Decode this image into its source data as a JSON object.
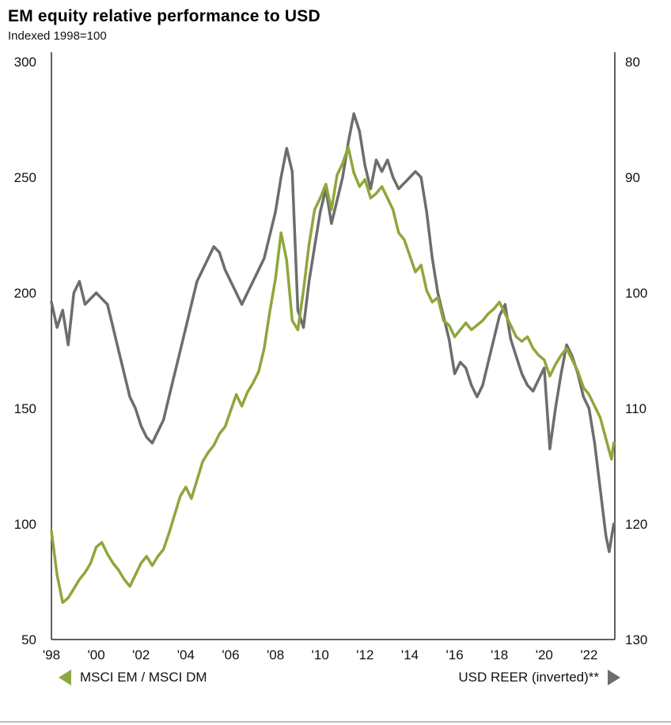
{
  "chart_data": {
    "type": "line",
    "title": "EM equity relative performance to USD",
    "subtitle": "Indexed 1998=100",
    "x_range": [
      1998,
      2023.15
    ],
    "x_ticks": [
      {
        "year": 1998,
        "label": "'98"
      },
      {
        "year": 2000,
        "label": "'00"
      },
      {
        "year": 2002,
        "label": "'02"
      },
      {
        "year": 2004,
        "label": "'04"
      },
      {
        "year": 2006,
        "label": "'06"
      },
      {
        "year": 2008,
        "label": "'08"
      },
      {
        "year": 2010,
        "label": "'10"
      },
      {
        "year": 2012,
        "label": "'12"
      },
      {
        "year": 2014,
        "label": "'14"
      },
      {
        "year": 2016,
        "label": "'16"
      },
      {
        "year": 2018,
        "label": "'18"
      },
      {
        "year": 2020,
        "label": "'20"
      },
      {
        "year": 2022,
        "label": "'22"
      }
    ],
    "left_axis": {
      "ticks": [
        300,
        250,
        200,
        150,
        100,
        50
      ],
      "range": [
        50,
        300
      ]
    },
    "right_axis": {
      "ticks": [
        80,
        90,
        100,
        110,
        120,
        130
      ],
      "range": [
        80,
        130
      ],
      "inverted": true
    },
    "grid": false,
    "legend_position": "bottom",
    "axis_color": "#2b2b2b",
    "series": [
      {
        "name": "MSCI EM / MSCI DM",
        "axis": "left",
        "color": "#8ea73c",
        "z": 2,
        "points": [
          [
            1998,
            97
          ],
          [
            1998.25,
            78
          ],
          [
            1998.5,
            66
          ],
          [
            1998.75,
            68
          ],
          [
            1999,
            72
          ],
          [
            1999.25,
            76
          ],
          [
            1999.5,
            79
          ],
          [
            1999.75,
            83
          ],
          [
            2000,
            90
          ],
          [
            2000.25,
            92
          ],
          [
            2000.5,
            87
          ],
          [
            2000.75,
            83
          ],
          [
            2001,
            80
          ],
          [
            2001.25,
            76
          ],
          [
            2001.5,
            73
          ],
          [
            2001.75,
            78
          ],
          [
            2002,
            83
          ],
          [
            2002.25,
            86
          ],
          [
            2002.5,
            82
          ],
          [
            2002.75,
            86
          ],
          [
            2003,
            89
          ],
          [
            2003.25,
            96
          ],
          [
            2003.5,
            104
          ],
          [
            2003.75,
            112
          ],
          [
            2004,
            116
          ],
          [
            2004.25,
            111
          ],
          [
            2004.5,
            119
          ],
          [
            2004.75,
            127
          ],
          [
            2005,
            131
          ],
          [
            2005.25,
            134
          ],
          [
            2005.5,
            139
          ],
          [
            2005.75,
            142
          ],
          [
            2006,
            149
          ],
          [
            2006.25,
            156
          ],
          [
            2006.5,
            151
          ],
          [
            2006.75,
            157
          ],
          [
            2007,
            161
          ],
          [
            2007.25,
            166
          ],
          [
            2007.5,
            176
          ],
          [
            2007.75,
            192
          ],
          [
            2008,
            206
          ],
          [
            2008.25,
            226
          ],
          [
            2008.5,
            214
          ],
          [
            2008.75,
            188
          ],
          [
            2009,
            184
          ],
          [
            2009.25,
            201
          ],
          [
            2009.5,
            221
          ],
          [
            2009.75,
            236
          ],
          [
            2010,
            241
          ],
          [
            2010.25,
            247
          ],
          [
            2010.5,
            236
          ],
          [
            2010.75,
            251
          ],
          [
            2011,
            256
          ],
          [
            2011.25,
            263
          ],
          [
            2011.5,
            252
          ],
          [
            2011.75,
            246
          ],
          [
            2012,
            249
          ],
          [
            2012.25,
            241
          ],
          [
            2012.5,
            243
          ],
          [
            2012.75,
            246
          ],
          [
            2013,
            241
          ],
          [
            2013.25,
            236
          ],
          [
            2013.5,
            226
          ],
          [
            2013.75,
            223
          ],
          [
            2014,
            216
          ],
          [
            2014.25,
            209
          ],
          [
            2014.5,
            212
          ],
          [
            2014.75,
            201
          ],
          [
            2015,
            196
          ],
          [
            2015.25,
            198
          ],
          [
            2015.5,
            188
          ],
          [
            2015.75,
            186
          ],
          [
            2016,
            181
          ],
          [
            2016.25,
            184
          ],
          [
            2016.5,
            187
          ],
          [
            2016.75,
            184
          ],
          [
            2017,
            186
          ],
          [
            2017.25,
            188
          ],
          [
            2017.5,
            191
          ],
          [
            2017.75,
            193
          ],
          [
            2018,
            196
          ],
          [
            2018.25,
            191
          ],
          [
            2018.5,
            186
          ],
          [
            2018.75,
            181
          ],
          [
            2019,
            179
          ],
          [
            2019.25,
            181
          ],
          [
            2019.5,
            176
          ],
          [
            2019.75,
            173
          ],
          [
            2020,
            171
          ],
          [
            2020.25,
            164
          ],
          [
            2020.5,
            169
          ],
          [
            2020.75,
            173
          ],
          [
            2021,
            176
          ],
          [
            2021.25,
            171
          ],
          [
            2021.5,
            166
          ],
          [
            2021.75,
            159
          ],
          [
            2022,
            156
          ],
          [
            2022.25,
            151
          ],
          [
            2022.5,
            146
          ],
          [
            2022.75,
            137
          ],
          [
            2023,
            128
          ],
          [
            2023.1,
            135
          ]
        ]
      },
      {
        "name": "USD REER (inverted)**",
        "axis": "right",
        "color": "#6d6d6d",
        "z": 1,
        "points": [
          [
            1998,
            100.8
          ],
          [
            1998.25,
            103
          ],
          [
            1998.5,
            101.5
          ],
          [
            1998.75,
            104.5
          ],
          [
            1999,
            100
          ],
          [
            1999.25,
            99
          ],
          [
            1999.5,
            101
          ],
          [
            1999.75,
            100.5
          ],
          [
            2000,
            100
          ],
          [
            2000.25,
            100.5
          ],
          [
            2000.5,
            101
          ],
          [
            2000.75,
            103
          ],
          [
            2001,
            105
          ],
          [
            2001.25,
            107
          ],
          [
            2001.5,
            109
          ],
          [
            2001.75,
            110
          ],
          [
            2002,
            111.5
          ],
          [
            2002.25,
            112.5
          ],
          [
            2002.5,
            113
          ],
          [
            2002.75,
            112
          ],
          [
            2003,
            111
          ],
          [
            2003.25,
            109
          ],
          [
            2003.5,
            107
          ],
          [
            2003.75,
            105
          ],
          [
            2004,
            103
          ],
          [
            2004.25,
            101
          ],
          [
            2004.5,
            99
          ],
          [
            2004.75,
            98
          ],
          [
            2005,
            97
          ],
          [
            2005.25,
            96
          ],
          [
            2005.5,
            96.5
          ],
          [
            2005.75,
            98
          ],
          [
            2006,
            99
          ],
          [
            2006.25,
            100
          ],
          [
            2006.5,
            101
          ],
          [
            2006.75,
            100
          ],
          [
            2007,
            99
          ],
          [
            2007.25,
            98
          ],
          [
            2007.5,
            97
          ],
          [
            2007.75,
            95
          ],
          [
            2008,
            93
          ],
          [
            2008.25,
            90
          ],
          [
            2008.5,
            87.5
          ],
          [
            2008.75,
            89.5
          ],
          [
            2009,
            101.5
          ],
          [
            2009.25,
            103
          ],
          [
            2009.5,
            99
          ],
          [
            2009.75,
            96
          ],
          [
            2010,
            93
          ],
          [
            2010.25,
            91
          ],
          [
            2010.5,
            94
          ],
          [
            2010.75,
            92
          ],
          [
            2011,
            90
          ],
          [
            2011.25,
            87
          ],
          [
            2011.5,
            84.5
          ],
          [
            2011.75,
            86
          ],
          [
            2012,
            89
          ],
          [
            2012.25,
            91
          ],
          [
            2012.5,
            88.5
          ],
          [
            2012.75,
            89.5
          ],
          [
            2013,
            88.5
          ],
          [
            2013.25,
            90
          ],
          [
            2013.5,
            91
          ],
          [
            2013.75,
            90.5
          ],
          [
            2014,
            90
          ],
          [
            2014.25,
            89.5
          ],
          [
            2014.5,
            90
          ],
          [
            2014.75,
            93
          ],
          [
            2015,
            97
          ],
          [
            2015.25,
            100
          ],
          [
            2015.5,
            102
          ],
          [
            2015.75,
            104
          ],
          [
            2016,
            107
          ],
          [
            2016.25,
            106
          ],
          [
            2016.5,
            106.5
          ],
          [
            2016.75,
            108
          ],
          [
            2017,
            109
          ],
          [
            2017.25,
            108
          ],
          [
            2017.5,
            106
          ],
          [
            2017.75,
            104
          ],
          [
            2018,
            102
          ],
          [
            2018.25,
            101
          ],
          [
            2018.5,
            104
          ],
          [
            2018.75,
            105.5
          ],
          [
            2019,
            107
          ],
          [
            2019.25,
            108
          ],
          [
            2019.5,
            108.5
          ],
          [
            2019.75,
            107.5
          ],
          [
            2020,
            106.5
          ],
          [
            2020.25,
            113.5
          ],
          [
            2020.5,
            110
          ],
          [
            2020.75,
            107
          ],
          [
            2021,
            104.5
          ],
          [
            2021.25,
            105.5
          ],
          [
            2021.5,
            107
          ],
          [
            2021.75,
            109
          ],
          [
            2022,
            110
          ],
          [
            2022.25,
            113
          ],
          [
            2022.5,
            117
          ],
          [
            2022.75,
            121
          ],
          [
            2022.9,
            122.4
          ],
          [
            2023.1,
            120
          ]
        ]
      }
    ]
  },
  "legend": {
    "left_marker": "left-triangle",
    "right_marker": "right-triangle"
  }
}
